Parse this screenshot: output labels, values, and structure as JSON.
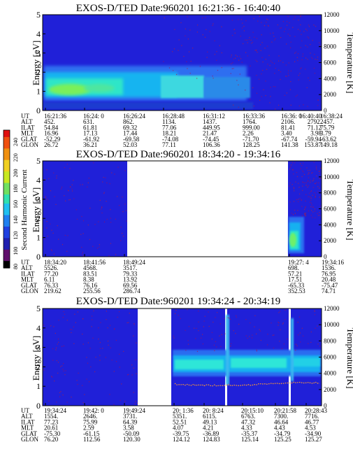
{
  "colorbar": {
    "label": "Second Harmonic Current",
    "ticks": [
      "240",
      "220",
      "200",
      "180",
      "160",
      "140",
      "120",
      "100",
      "80"
    ]
  },
  "chart_data": [
    {
      "type": "heatmap",
      "title": "EXOS-D/TED   Date:960201   16:21:36 - 16:40:40",
      "ylabel": "Energy [eV]",
      "y2label": "Temperature [K]",
      "ylim": [
        0,
        5
      ],
      "y2lim": [
        0,
        12000
      ],
      "yticks": [
        "0",
        "1",
        "2",
        "3",
        "4",
        "5"
      ],
      "y2ticks": [
        "0",
        "2000",
        "4000",
        "6000",
        "8000",
        "10000",
        "12000"
      ],
      "data_gaps": [],
      "ephemeris": {
        "labels": [
          "UT",
          "ALT",
          "ILAT",
          "MLT",
          "GLAT",
          "GLON"
        ],
        "columns": [
          [
            "16:21:36",
            "452.",
            "54.84",
            "16.96",
            "-52.29",
            "26.72"
          ],
          [
            "16:24: 0",
            "631.",
            "61.81",
            "17.13",
            "-61.92",
            "36.21"
          ],
          [
            "16:26:24",
            "862.",
            "69.32",
            "17.44",
            "-69.58",
            "52.03"
          ],
          [
            "16:28:48",
            "1134.",
            "77.06",
            "18.21",
            "-74.08",
            "77.11"
          ],
          [
            "16:31:12",
            "1437.",
            "449.95",
            "21.47",
            "-74.45",
            "106.36"
          ],
          [
            "16:33:36",
            "1764.",
            "999.00",
            "2.26",
            "-71.70",
            "128.25"
          ],
          [
            "16:36: 0",
            "2106.",
            "81.41",
            "3.40",
            "-67.74",
            "141.38"
          ],
          [
            "16:38:24",
            "2457.",
            "75.79",
            "3.79",
            "-63.62",
            "149.18"
          ],
          [
            "16:40:40",
            "2792.",
            "71.12",
            "3.98",
            "-59.94",
            "153.87"
          ]
        ]
      }
    },
    {
      "type": "heatmap",
      "title": "EXOS-D/TED   Date:960201   18:34:20 - 19:34:16",
      "ylabel": "Energy [eV]",
      "y2label": "Temperature [K]",
      "ylim": [
        0,
        5
      ],
      "y2lim": [
        0,
        12000
      ],
      "yticks": [
        "0",
        "1",
        "2",
        "3",
        "4",
        "5"
      ],
      "y2ticks": [
        "0",
        "2000",
        "4000",
        "6000",
        "8000",
        "10000",
        "12000"
      ],
      "data_gaps": [
        [
          0.27,
          0.88
        ]
      ],
      "ephemeris": {
        "labels": [
          "UT",
          "ALT",
          "ILAT",
          "MLT",
          "GLAT",
          "GLON"
        ],
        "columns": [
          [
            "18:34:20",
            "5526.",
            "77.20",
            "6.11",
            "76.33",
            "219.62"
          ],
          [
            "18:41:56",
            "4568.",
            "83.51",
            "8.38",
            "76.16",
            "255.56"
          ],
          [
            "18:49:24",
            "3517.",
            "79.33",
            "13.92",
            "69.56",
            "286.74"
          ],
          [
            "19:27: 4",
            "698.",
            "57.21",
            "17.51",
            "-65.33",
            "352.53"
          ],
          [
            "19:34:16",
            "1536.",
            "76.95",
            "20.48",
            "-75.47",
            "74.71"
          ]
        ]
      }
    },
    {
      "type": "heatmap",
      "title": "EXOS-D/TED   Date:960201   19:34:24 - 20:34:19",
      "ylabel": "Energy [eV]",
      "y2label": "Temperature [K]",
      "ylim": [
        0,
        5
      ],
      "y2lim": [
        0,
        12000
      ],
      "yticks": [
        "0",
        "1",
        "2",
        "3",
        "4",
        "5"
      ],
      "y2ticks": [
        "0",
        "2000",
        "4000",
        "6000",
        "8000",
        "10000",
        "12000"
      ],
      "data_gaps": [
        [
          0.36,
          0.48
        ]
      ],
      "ephemeris": {
        "labels": [
          "UT",
          "ALT",
          "ILAT",
          "MLT",
          "GLAT",
          "GLON"
        ],
        "columns": [
          [
            "19:34:24",
            "1554.",
            "77.23",
            "20.61",
            "-75.30",
            "76.20"
          ],
          [
            "19:42: 0",
            "2646.",
            "75.99",
            "2.59",
            "-61.15",
            "112.56"
          ],
          [
            "19:49:24",
            "3731.",
            "64.39",
            "3.58",
            "-50.09",
            "120.30"
          ],
          [
            "20: 1:36",
            "5351.",
            "52.51",
            "4.07",
            "-39.75",
            "124.12"
          ],
          [
            "20: 8:24",
            "6115.",
            "49.13",
            "4.21",
            "-36.89",
            "124.83"
          ],
          [
            "20:15:10",
            "6763.",
            "47.32",
            "4.33",
            "-35.37",
            "125.14"
          ],
          [
            "20:21:58",
            "7300.",
            "46.64",
            "4.43",
            "-34.79",
            "125.25"
          ],
          [
            "20:28:43",
            "7716.",
            "46.77",
            "4.53",
            "-34.90",
            "125.27"
          ]
        ]
      }
    }
  ]
}
